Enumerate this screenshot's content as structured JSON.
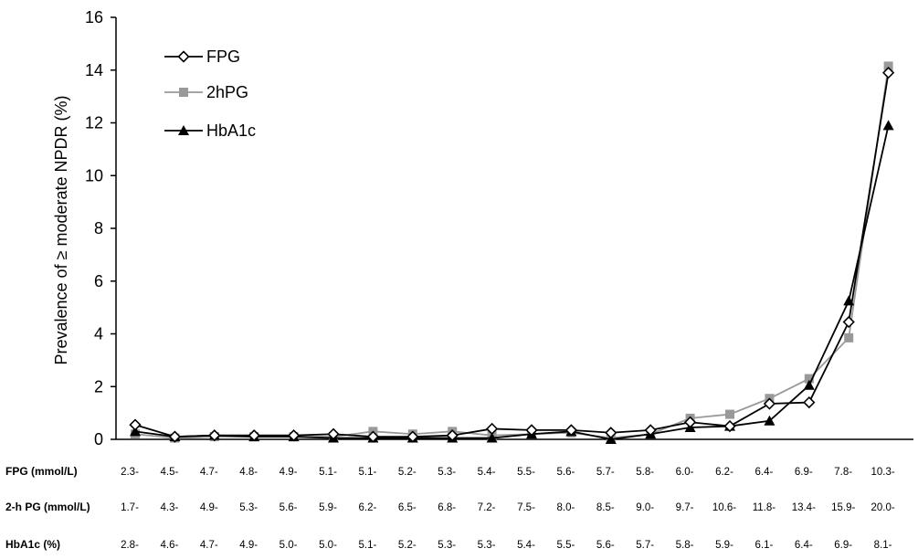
{
  "chart_data": {
    "type": "line",
    "ylabel": "Prevalence of ≥ moderate NPDR (%)",
    "ylim": [
      0,
      16
    ],
    "yticks": [
      "0",
      "2",
      "4",
      "6",
      "8",
      "10",
      "12",
      "14",
      "16"
    ],
    "grid": false,
    "legend_position": "top-left",
    "category_rows": [
      {
        "label": "FPG (mmol/L)",
        "values": [
          "2.3-",
          "4.5-",
          "4.7-",
          "4.8-",
          "4.9-",
          "5.1-",
          "5.1-",
          "5.2-",
          "5.3-",
          "5.4-",
          "5.5-",
          "5.6-",
          "5.7-",
          "5.8-",
          "6.0-",
          "6.2-",
          "6.4-",
          "6.9-",
          "7.8-",
          "10.3-"
        ]
      },
      {
        "label": "2-h PG (mmol/L)",
        "values": [
          "1.7-",
          "4.3-",
          "4.9-",
          "5.3-",
          "5.6-",
          "5.9-",
          "6.2-",
          "6.5-",
          "6.8-",
          "7.2-",
          "7.5-",
          "8.0-",
          "8.5-",
          "9.0-",
          "9.7-",
          "10.6-",
          "11.8-",
          "13.4-",
          "15.9-",
          "20.0-"
        ]
      },
      {
        "label": "HbA1c (%)",
        "values": [
          "2.8-",
          "4.6-",
          "4.7-",
          "4.9-",
          "5.0-",
          "5.0-",
          "5.1-",
          "5.2-",
          "5.3-",
          "5.3-",
          "5.4-",
          "5.5-",
          "5.6-",
          "5.7-",
          "5.8-",
          "5.9-",
          "6.1-",
          "6.4-",
          "6.9-",
          "8.1-"
        ]
      }
    ],
    "series": [
      {
        "name": "FPG",
        "marker": "diamond-open",
        "color": "#000000",
        "values": [
          0.55,
          0.1,
          0.15,
          0.15,
          0.15,
          0.2,
          0.1,
          0.1,
          0.15,
          0.4,
          0.35,
          0.35,
          0.25,
          0.35,
          0.65,
          0.5,
          1.35,
          1.4,
          4.45,
          13.9
        ]
      },
      {
        "name": "2hPG",
        "marker": "square",
        "color": "#999999",
        "values": [
          0.2,
          0.05,
          0.1,
          0.1,
          0.1,
          0.1,
          0.3,
          0.2,
          0.3,
          0.15,
          0.2,
          0.25,
          0.05,
          0.2,
          0.8,
          0.95,
          1.55,
          2.3,
          3.85,
          14.15
        ]
      },
      {
        "name": "HbA1c",
        "marker": "triangle",
        "color": "#000000",
        "values": [
          0.3,
          0.1,
          0.15,
          0.1,
          0.1,
          0.05,
          0.05,
          0.05,
          0.05,
          0.05,
          0.2,
          0.3,
          0.0,
          0.2,
          0.45,
          0.5,
          0.7,
          2.05,
          5.25,
          11.9
        ]
      }
    ]
  }
}
